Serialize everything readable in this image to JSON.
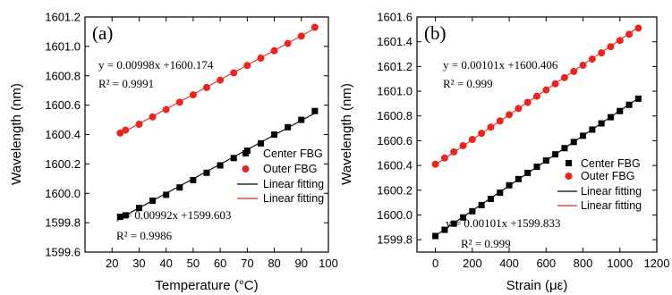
{
  "colors": {
    "center_series": "#000000",
    "outer_series": "#e8261f",
    "center_fit": "#000000",
    "outer_fit": "#e8261f"
  },
  "chart_data": [
    {
      "type": "scatter",
      "panel_label": "(a)",
      "xlabel": "Temperature (°C)",
      "ylabel": "Wavelength (nm)",
      "xlim": [
        10,
        100
      ],
      "ylim": [
        1599.6,
        1601.2
      ],
      "xticks": [
        20,
        30,
        40,
        50,
        60,
        70,
        80,
        90,
        100
      ],
      "yticks": [
        1599.6,
        1599.8,
        1600.0,
        1600.2,
        1600.4,
        1600.6,
        1600.8,
        1601.0,
        1601.2
      ],
      "ytick_labels": [
        "1599.6",
        "1599.8",
        "1600.0",
        "1600.2",
        "1600.4",
        "1600.6",
        "1600.8",
        "1601.0",
        "1601.2"
      ],
      "x": [
        23,
        25,
        30,
        35,
        40,
        45,
        50,
        55,
        60,
        65,
        70,
        75,
        80,
        85,
        90,
        95
      ],
      "series": [
        {
          "name": "Center FBG",
          "marker": "square",
          "y": [
            1599.84,
            1599.85,
            1599.9,
            1599.95,
            1599.99,
            1600.04,
            1600.09,
            1600.14,
            1600.19,
            1600.24,
            1600.29,
            1600.34,
            1600.4,
            1600.45,
            1600.5,
            1600.56
          ]
        },
        {
          "name": "Outer FBG",
          "marker": "circle",
          "y": [
            1600.41,
            1600.43,
            1600.47,
            1600.52,
            1600.57,
            1600.62,
            1600.67,
            1600.72,
            1600.77,
            1600.82,
            1600.87,
            1600.92,
            1600.97,
            1601.02,
            1601.07,
            1601.13
          ]
        }
      ],
      "fits": [
        {
          "name": "Linear fitting",
          "of": "Center FBG",
          "slope": 0.00992,
          "intercept": 1599.603,
          "x_range": [
            23,
            95
          ]
        },
        {
          "name": "Linear fitting",
          "of": "Outer FBG",
          "slope": 0.00998,
          "intercept": 1600.174,
          "x_range": [
            23,
            95
          ]
        }
      ],
      "equations": {
        "outer_eq": "y = 0.00998x +1600.174",
        "outer_r2": "R² = 0.9991",
        "center_eq": "y = 0.00992x +1599.603",
        "center_r2": "R² = 0.9986"
      },
      "legend": [
        "Center FBG",
        "Outer FBG",
        "Linear fitting",
        "Linear fitting"
      ],
      "legend_position": "right"
    },
    {
      "type": "scatter",
      "panel_label": "(b)",
      "xlabel": "Strain (με)",
      "ylabel": "Wavelength (nm)",
      "xlim": [
        -100,
        1200
      ],
      "ylim": [
        1599.7,
        1601.6
      ],
      "xticks": [
        0,
        200,
        400,
        600,
        800,
        1000,
        1200
      ],
      "yticks": [
        1599.8,
        1600.0,
        1600.2,
        1600.4,
        1600.6,
        1600.8,
        1601.0,
        1601.2,
        1601.4,
        1601.6
      ],
      "ytick_labels": [
        "1599.8",
        "1600.0",
        "1600.2",
        "1600.4",
        "1600.6",
        "1600.8",
        "1601.0",
        "1601.2",
        "1601.4",
        "1601.6"
      ],
      "x": [
        0,
        50,
        100,
        150,
        200,
        250,
        300,
        350,
        400,
        450,
        500,
        550,
        600,
        650,
        700,
        750,
        800,
        850,
        900,
        950,
        1000,
        1050,
        1100
      ],
      "series": [
        {
          "name": "Center FBG",
          "marker": "square",
          "y": [
            1599.83,
            1599.88,
            1599.93,
            1599.98,
            1600.03,
            1600.08,
            1600.13,
            1600.18,
            1600.24,
            1600.29,
            1600.34,
            1600.39,
            1600.44,
            1600.49,
            1600.54,
            1600.59,
            1600.64,
            1600.69,
            1600.74,
            1600.79,
            1600.84,
            1600.89,
            1600.94
          ]
        },
        {
          "name": "Outer FBG",
          "marker": "circle",
          "y": [
            1600.41,
            1600.46,
            1600.51,
            1600.56,
            1600.61,
            1600.66,
            1600.71,
            1600.76,
            1600.81,
            1600.86,
            1600.91,
            1600.96,
            1601.01,
            1601.06,
            1601.11,
            1601.16,
            1601.21,
            1601.26,
            1601.31,
            1601.36,
            1601.41,
            1601.46,
            1601.51
          ]
        }
      ],
      "fits": [
        {
          "name": "Linear fitting",
          "of": "Center FBG",
          "slope": 0.00101,
          "intercept": 1599.833,
          "x_range": [
            0,
            1100
          ]
        },
        {
          "name": "Linear fitting",
          "of": "Outer FBG",
          "slope": 0.00101,
          "intercept": 1600.406,
          "x_range": [
            0,
            1100
          ]
        }
      ],
      "equations": {
        "outer_eq": "y = 0.00101x +1600.406",
        "outer_r2": "R² = 0.999",
        "center_eq": "y = 0.00101x +1599.833",
        "center_r2": "R² = 0.999"
      },
      "legend": [
        "Center FBG",
        "Outer FBG",
        "Linear fitting",
        "Linear fitting"
      ],
      "legend_position": "right"
    }
  ]
}
